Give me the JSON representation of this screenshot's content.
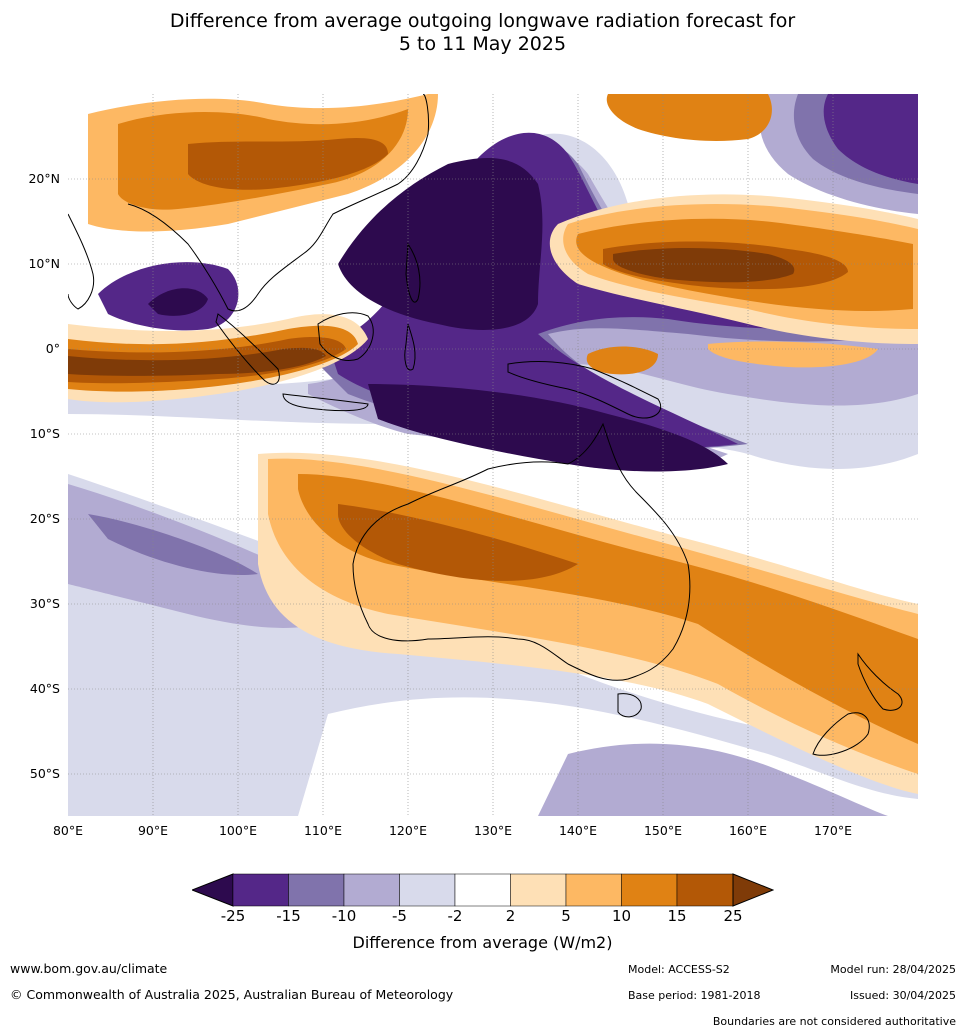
{
  "title": {
    "line1": "Difference from average outgoing longwave radiation forecast for",
    "line2": "5 to 11 May 2025"
  },
  "map": {
    "lat_labels": [
      "20°N",
      "10°N",
      "0°",
      "10°S",
      "20°S",
      "30°S",
      "40°S",
      "50°S"
    ],
    "lon_labels": [
      "80°E",
      "90°E",
      "100°E",
      "110°E",
      "120°E",
      "130°E",
      "140°E",
      "150°E",
      "160°E",
      "170°E"
    ]
  },
  "colorbar": {
    "ticks": [
      "-25",
      "-15",
      "-10",
      "-5",
      "-2",
      "2",
      "5",
      "10",
      "15",
      "25"
    ],
    "colors": [
      "#2d0a4e",
      "#542788",
      "#8073ac",
      "#b2abd2",
      "#d8daeb",
      "#ffffff",
      "#fee0b6",
      "#fdb863",
      "#e08214",
      "#b35806",
      "#7f3b08"
    ],
    "label": "Difference from average (W/m2)"
  },
  "footer": {
    "url": "www.bom.gov.au/climate",
    "copyright": "© Commonwealth of Australia 2025, Australian Bureau of Meteorology",
    "model": "Model: ACCESS-S2",
    "base_period": "Base period: 1981-2018",
    "model_run": "Model run: 28/04/2025",
    "issued": "Issued: 30/04/2025",
    "disclaimer": "Boundaries are not considered authoritative"
  }
}
